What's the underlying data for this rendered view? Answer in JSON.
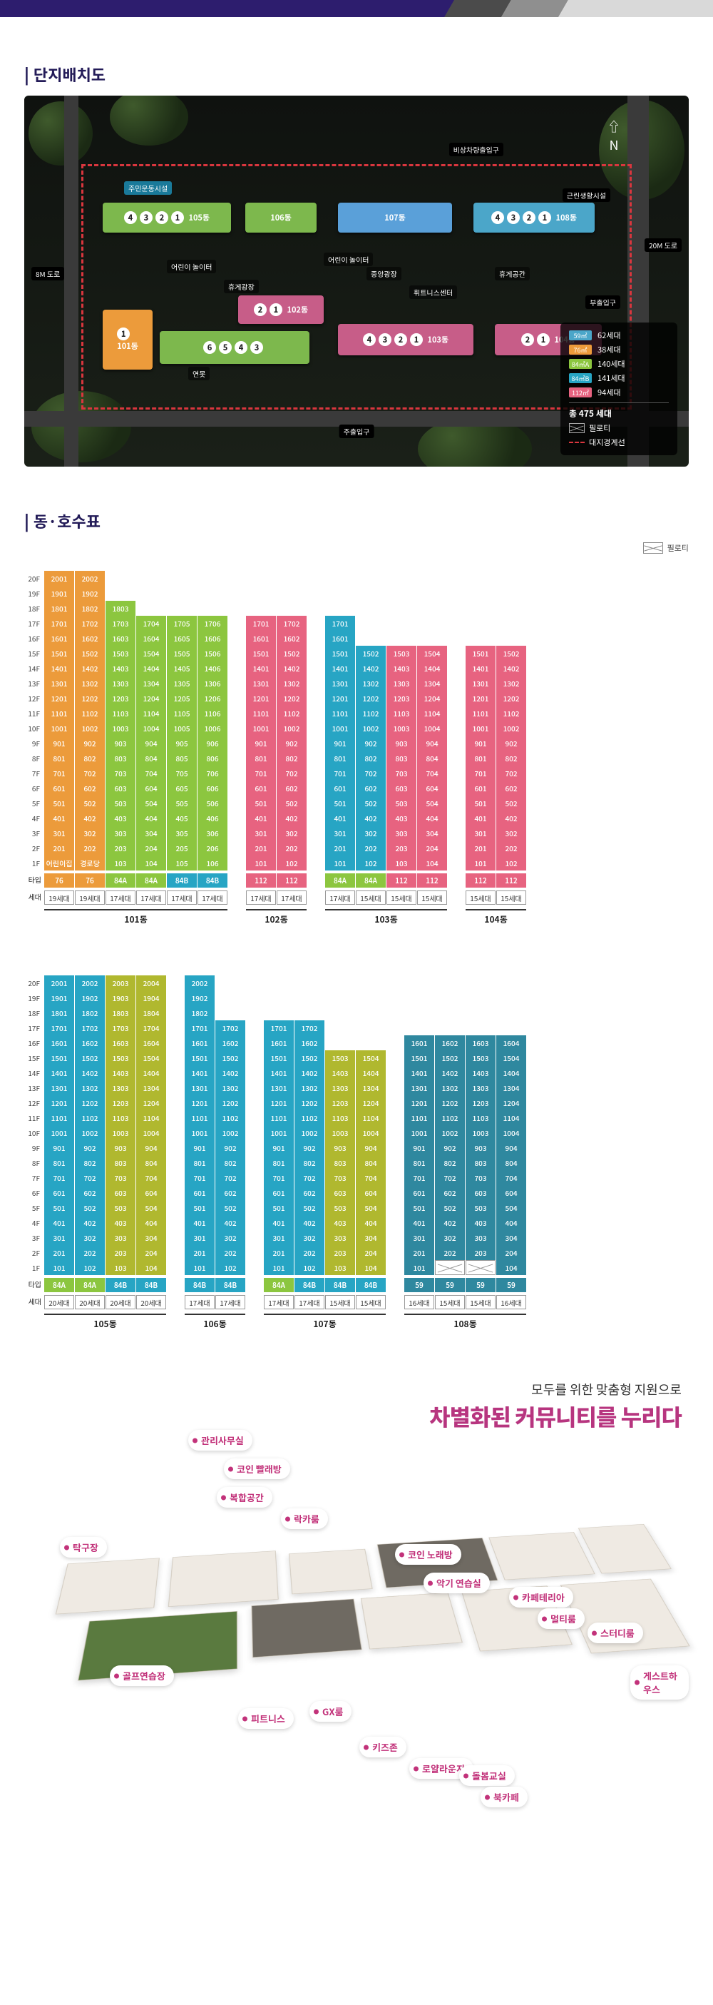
{
  "page": {
    "section1_title": "단지배치도",
    "section2_title": "동·호수표",
    "pilotis_label": "필로티"
  },
  "colors": {
    "type_59": "#4ba6c9",
    "type_76": "#ec9b3b",
    "type_84a": "#8cc63f",
    "type_84b": "#27a5c4",
    "type_112": "#e76380",
    "accent": "#b7357f",
    "title": "#231b58"
  },
  "site_plan": {
    "roads": {
      "left": "8M\n도로",
      "right": "20M\n도로"
    },
    "north_arrow": "N",
    "gate_main": "주출입구",
    "gate_side": "부출입구",
    "gate_emergency": "비상차량출입구",
    "bus_stop": "근린생활시설",
    "labels_inside": [
      "주민운동시설",
      "어린이 놀이터",
      "휴게광장",
      "중앙광장",
      "어린이 놀이터",
      "휴게공간",
      "휘트니스센터",
      "연못"
    ],
    "building_names": [
      "101동",
      "102동",
      "103동",
      "104동",
      "105동",
      "106동",
      "107동",
      "108동"
    ],
    "legend": {
      "rows": [
        {
          "type": "59㎡",
          "color": "#4ba6c9",
          "households": "62세대"
        },
        {
          "type": "76㎡",
          "color": "#ec9b3b",
          "households": "38세대"
        },
        {
          "type": "84㎡A",
          "color": "#8cc63f",
          "households": "140세대"
        },
        {
          "type": "84㎡B",
          "color": "#27a5c4",
          "households": "141세대"
        },
        {
          "type": "112㎡",
          "color": "#e76380",
          "households": "94세대"
        }
      ],
      "total": "총 475 세대",
      "piloti": "필로티",
      "boundary": "대지경계선"
    }
  },
  "floor_labels": [
    "20F",
    "19F",
    "18F",
    "17F",
    "16F",
    "15F",
    "14F",
    "13F",
    "12F",
    "11F",
    "10F",
    "9F",
    "8F",
    "7F",
    "6F",
    "5F",
    "4F",
    "3F",
    "2F",
    "1F"
  ],
  "type_label": "타입",
  "hh_label": "세대",
  "chart_row1": [
    {
      "name": "101동",
      "stacks": [
        {
          "type": "76",
          "hh": "19세대",
          "units": [
            "2001",
            "1901",
            "1801",
            "1701",
            "1601",
            "1501",
            "1401",
            "1301",
            "1201",
            "1101",
            "1001",
            "901",
            "801",
            "701",
            "601",
            "501",
            "401",
            "301",
            "201",
            "어린이집"
          ]
        },
        {
          "type": "76",
          "hh": "19세대",
          "units": [
            "2002",
            "1902",
            "1802",
            "1702",
            "1602",
            "1502",
            "1402",
            "1302",
            "1202",
            "1102",
            "1002",
            "902",
            "802",
            "702",
            "602",
            "502",
            "402",
            "302",
            "202",
            "경로당"
          ]
        },
        {
          "type": "84A",
          "hh": "17세대",
          "units": [
            "1803",
            "1703",
            "1603",
            "1503",
            "1403",
            "1303",
            "1203",
            "1103",
            "1003",
            "903",
            "803",
            "703",
            "603",
            "503",
            "403",
            "303",
            "203",
            "103"
          ],
          "top_blank": 2
        },
        {
          "type": "84A",
          "hh": "17세대",
          "units": [
            "1704",
            "1604",
            "1504",
            "1404",
            "1304",
            "1204",
            "1104",
            "1004",
            "904",
            "804",
            "704",
            "604",
            "504",
            "404",
            "304",
            "204",
            "104"
          ],
          "top_blank": 3
        },
        {
          "type": "84B",
          "hh": "17세대",
          "color": "green2",
          "units": [
            "1705",
            "1605",
            "1505",
            "1405",
            "1305",
            "1205",
            "1105",
            "1005",
            "905",
            "805",
            "705",
            "605",
            "505",
            "405",
            "305",
            "205",
            "105"
          ],
          "top_blank": 3
        },
        {
          "type": "84B",
          "hh": "17세대",
          "color": "green2",
          "units": [
            "1706",
            "1606",
            "1506",
            "1406",
            "1306",
            "1206",
            "1106",
            "1006",
            "906",
            "806",
            "706",
            "606",
            "506",
            "406",
            "306",
            "206",
            "106"
          ],
          "top_blank": 3
        }
      ]
    },
    {
      "name": "102동",
      "stacks": [
        {
          "type": "112",
          "hh": "17세대",
          "units": [
            "1701",
            "1601",
            "1501",
            "1401",
            "1301",
            "1201",
            "1101",
            "1001",
            "901",
            "801",
            "701",
            "601",
            "501",
            "401",
            "301",
            "201",
            "101"
          ],
          "top_blank": 3
        },
        {
          "type": "112",
          "hh": "17세대",
          "units": [
            "1702",
            "1602",
            "1502",
            "1402",
            "1302",
            "1202",
            "1102",
            "1002",
            "902",
            "802",
            "702",
            "602",
            "502",
            "402",
            "302",
            "202",
            "102"
          ],
          "top_blank": 3
        }
      ]
    },
    {
      "name": "103동",
      "stacks": [
        {
          "type": "84A",
          "hh": "17세대",
          "color": "84b",
          "units": [
            "1701",
            "1601",
            "1501",
            "1401",
            "1301",
            "1201",
            "1101",
            "1001",
            "901",
            "801",
            "701",
            "601",
            "501",
            "401",
            "301",
            "201",
            "101"
          ],
          "top_blank": 3
        },
        {
          "type": "84A",
          "hh": "15세대",
          "color": "84b",
          "units": [
            "1502",
            "1402",
            "1302",
            "1202",
            "1102",
            "1002",
            "902",
            "802",
            "702",
            "602",
            "502",
            "402",
            "302",
            "202",
            "102"
          ],
          "top_blank": 5
        },
        {
          "type": "112",
          "hh": "15세대",
          "units": [
            "1503",
            "1403",
            "1303",
            "1203",
            "1103",
            "1003",
            "903",
            "803",
            "703",
            "603",
            "503",
            "403",
            "303",
            "203",
            "103"
          ],
          "top_blank": 5
        },
        {
          "type": "112",
          "hh": "15세대",
          "units": [
            "1504",
            "1404",
            "1304",
            "1204",
            "1104",
            "1004",
            "904",
            "804",
            "704",
            "604",
            "504",
            "404",
            "304",
            "204",
            "104"
          ],
          "top_blank": 5
        }
      ]
    },
    {
      "name": "104동",
      "stacks": [
        {
          "type": "112",
          "hh": "15세대",
          "units": [
            "1501",
            "1401",
            "1301",
            "1201",
            "1101",
            "1001",
            "901",
            "801",
            "701",
            "601",
            "501",
            "401",
            "301",
            "201",
            "101"
          ],
          "top_blank": 5
        },
        {
          "type": "112",
          "hh": "15세대",
          "units": [
            "1502",
            "1402",
            "1302",
            "1202",
            "1102",
            "1002",
            "902",
            "802",
            "702",
            "602",
            "502",
            "402",
            "302",
            "202",
            "102"
          ],
          "top_blank": 5
        }
      ]
    }
  ],
  "chart_row2": [
    {
      "name": "105동",
      "stacks": [
        {
          "type": "84A",
          "hh": "20세대",
          "color": "84b",
          "units": [
            "2001",
            "1901",
            "1801",
            "1701",
            "1601",
            "1501",
            "1401",
            "1301",
            "1201",
            "1101",
            "1001",
            "901",
            "801",
            "701",
            "601",
            "501",
            "401",
            "301",
            "201",
            "101"
          ]
        },
        {
          "type": "84A",
          "hh": "20세대",
          "color": "84b",
          "units": [
            "2002",
            "1902",
            "1802",
            "1702",
            "1602",
            "1502",
            "1402",
            "1302",
            "1202",
            "1102",
            "1002",
            "902",
            "802",
            "702",
            "602",
            "502",
            "402",
            "302",
            "202",
            "102"
          ]
        },
        {
          "type": "84B",
          "hh": "20세대",
          "color": "olive",
          "units": [
            "2003",
            "1903",
            "1803",
            "1703",
            "1603",
            "1503",
            "1403",
            "1303",
            "1203",
            "1103",
            "1003",
            "903",
            "803",
            "703",
            "603",
            "503",
            "403",
            "303",
            "203",
            "103"
          ]
        },
        {
          "type": "84B",
          "hh": "20세대",
          "color": "olive",
          "units": [
            "2004",
            "1904",
            "1804",
            "1704",
            "1604",
            "1504",
            "1404",
            "1304",
            "1204",
            "1104",
            "1004",
            "904",
            "804",
            "704",
            "604",
            "504",
            "404",
            "304",
            "204",
            "104"
          ]
        }
      ]
    },
    {
      "name": "106동",
      "stacks": [
        {
          "type": "84B",
          "hh": "17세대",
          "color": "84b",
          "units": [
            "2002",
            "1902",
            "1802",
            "1701",
            "1601",
            "1501",
            "1401",
            "1301",
            "1201",
            "1101",
            "1001",
            "901",
            "801",
            "701",
            "601",
            "501",
            "401",
            "301",
            "201",
            "101"
          ],
          "top_blank": 0,
          "shift_first3": true
        },
        {
          "type": "84B",
          "hh": "17세대",
          "color": "84b",
          "units": [
            "1702",
            "1602",
            "1502",
            "1402",
            "1302",
            "1202",
            "1102",
            "1002",
            "902",
            "802",
            "702",
            "602",
            "502",
            "402",
            "302",
            "202",
            "102"
          ],
          "top_blank": 3
        }
      ]
    },
    {
      "name": "107동",
      "stacks": [
        {
          "type": "84A",
          "hh": "17세대",
          "color": "84b",
          "units": [
            "1701",
            "1601",
            "1501",
            "1401",
            "1301",
            "1201",
            "1101",
            "1001",
            "901",
            "801",
            "701",
            "601",
            "501",
            "401",
            "301",
            "201",
            "101"
          ],
          "top_blank": 3
        },
        {
          "type": "84B",
          "hh": "17세대",
          "color": "84b",
          "units": [
            "1702",
            "1602",
            "1502",
            "1402",
            "1302",
            "1202",
            "1102",
            "1002",
            "902",
            "802",
            "702",
            "602",
            "502",
            "402",
            "302",
            "202",
            "102"
          ],
          "top_blank": 3
        },
        {
          "type": "84B",
          "hh": "15세대",
          "color": "olive",
          "units": [
            "1503",
            "1403",
            "1303",
            "1203",
            "1103",
            "1003",
            "903",
            "803",
            "703",
            "603",
            "503",
            "403",
            "303",
            "203",
            "103"
          ],
          "top_blank": 5
        },
        {
          "type": "84B",
          "hh": "15세대",
          "color": "olive",
          "units": [
            "1504",
            "1404",
            "1304",
            "1204",
            "1104",
            "1004",
            "904",
            "804",
            "704",
            "604",
            "504",
            "404",
            "304",
            "204",
            "104"
          ],
          "top_blank": 5
        }
      ]
    },
    {
      "name": "108동",
      "stacks": [
        {
          "type": "59",
          "hh": "16세대",
          "units": [
            "1601",
            "1501",
            "1401",
            "1301",
            "1201",
            "1101",
            "1001",
            "901",
            "801",
            "701",
            "601",
            "501",
            "401",
            "301",
            "201",
            "101"
          ],
          "top_blank": 4
        },
        {
          "type": "59",
          "hh": "15세대",
          "units": [
            "1602",
            "1502",
            "1402",
            "1302",
            "1202",
            "1102",
            "1002",
            "902",
            "802",
            "702",
            "602",
            "502",
            "402",
            "302",
            "202"
          ],
          "top_blank": 4,
          "bottom_pilo": true
        },
        {
          "type": "59",
          "hh": "15세대",
          "units": [
            "1603",
            "1503",
            "1403",
            "1303",
            "1203",
            "1103",
            "1003",
            "903",
            "803",
            "703",
            "603",
            "503",
            "403",
            "303",
            "203"
          ],
          "top_blank": 4,
          "bottom_pilo": true
        },
        {
          "type": "59",
          "hh": "16세대",
          "units": [
            "1604",
            "1504",
            "1404",
            "1304",
            "1204",
            "1104",
            "1004",
            "904",
            "804",
            "704",
            "604",
            "504",
            "404",
            "304",
            "204",
            "104"
          ],
          "top_blank": 4
        }
      ]
    }
  ],
  "community": {
    "subtitle": "모두를 위한 맞춤형 지원으로",
    "title": "차별화된 커뮤니티를 누리다",
    "tags": [
      "관리사무실",
      "코인 빨래방",
      "복합공간",
      "탁구장",
      "락카룸",
      "골프연습장",
      "피트니스",
      "GX룸",
      "키즈존",
      "로얄라운지",
      "돌봄교실",
      "북카페",
      "코인 노래방",
      "악기 연습실",
      "카페테리아",
      "멀티룸",
      "스터디룸",
      "게스트하우스"
    ]
  }
}
